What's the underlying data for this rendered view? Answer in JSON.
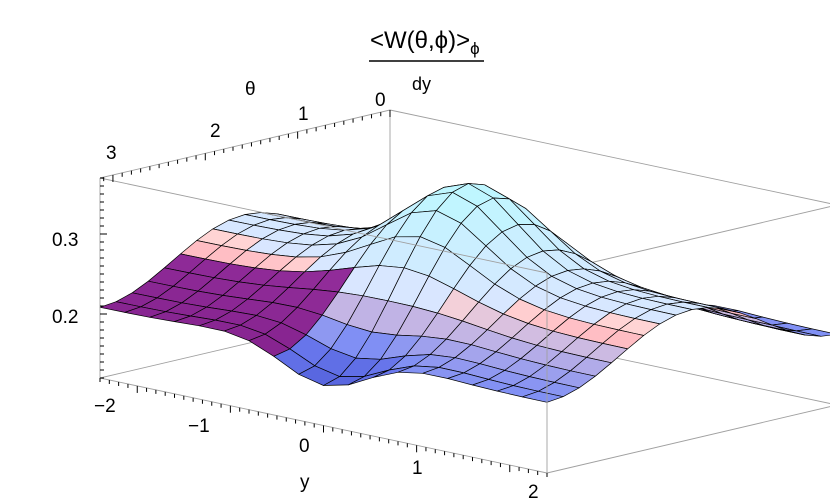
{
  "chart_data": {
    "type": "surface3d",
    "title_numerator": "<W(θ,ϕ)>",
    "title_numerator_subscript": "ϕ",
    "title_denominator": "dy",
    "xlabel": "y",
    "ylabel": "θ",
    "zlabel": "",
    "x_range": [
      -2.4,
      2.4
    ],
    "y_range": [
      0,
      3.14
    ],
    "z_range": [
      0.12,
      0.37
    ],
    "x_ticks": [
      "−2",
      "−1",
      "0",
      "1",
      "2"
    ],
    "x_tick_values": [
      -2,
      -1,
      0,
      1,
      2
    ],
    "y_ticks": [
      "0",
      "1",
      "2",
      "3"
    ],
    "y_tick_values": [
      0,
      1,
      2,
      3
    ],
    "z_ticks": [
      "0.2",
      "0.3"
    ],
    "z_tick_values": [
      0.2,
      0.3
    ],
    "mesh": "18x18 grid, z ≈ 0.245 − 0.105·cos(2θ)·(0.35+0.65·exp(−2.1·y²)) + 0.03·exp(−y²)",
    "box": true,
    "colors": {
      "low": "#3a46c8",
      "mid": "#ff5577",
      "high": "#bff6ff",
      "dark": "#7a1a85",
      "mesh": "#000000",
      "box": "#a0a0a0"
    }
  }
}
